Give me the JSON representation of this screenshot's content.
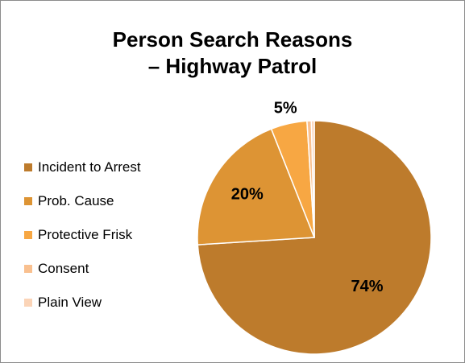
{
  "chart_data": {
    "type": "pie",
    "title": "Person Search Reasons – Highway Patrol",
    "title_lines": [
      "Person Search Reasons",
      "– Highway Patrol"
    ],
    "categories": [
      "Incident to Arrest",
      "Prob. Cause",
      "Protective Frisk",
      "Consent",
      "Plain View"
    ],
    "values": [
      74,
      20,
      5,
      0.6,
      0.4
    ],
    "data_labels": [
      "74%",
      "20%",
      "5%",
      "",
      ""
    ],
    "colors": [
      "#BD7B2C",
      "#DD9434",
      "#F7A743",
      "#F9C08F",
      "#FBD4B7"
    ],
    "legend_position": "left",
    "start_angle_deg": 0,
    "direction": "clockwise"
  }
}
